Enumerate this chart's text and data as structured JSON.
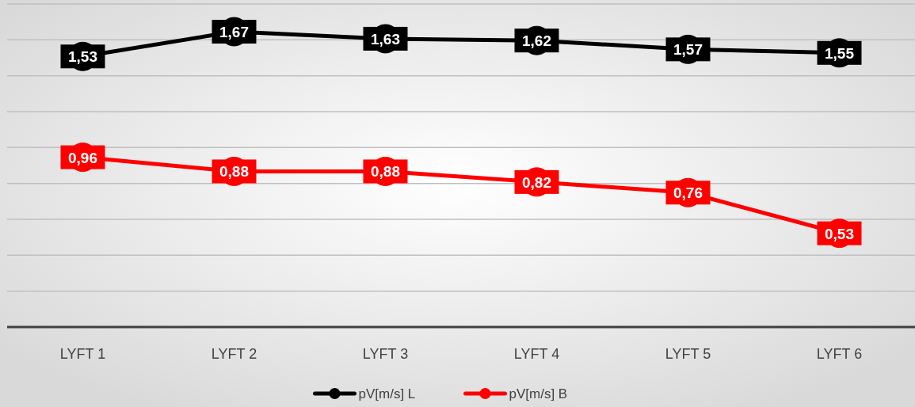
{
  "chart_data": {
    "type": "line",
    "categories": [
      "LYFT 1",
      "LYFT 2",
      "LYFT 3",
      "LYFT 4",
      "LYFT 5",
      "LYFT 6"
    ],
    "series": [
      {
        "name": "pV[m/s] L",
        "color": "#000000",
        "values": [
          1.53,
          1.67,
          1.63,
          1.62,
          1.57,
          1.55
        ],
        "value_labels": [
          "1,53",
          "1,67",
          "1,63",
          "1,62",
          "1,57",
          "1,55"
        ]
      },
      {
        "name": "pV[m/s] B",
        "color": "#ff0000",
        "values": [
          0.96,
          0.88,
          0.88,
          0.82,
          0.76,
          0.53
        ],
        "value_labels": [
          "0,96",
          "0,88",
          "0,88",
          "0,82",
          "0,76",
          "0,53"
        ]
      }
    ],
    "tick_labels": "x",
    "grid": "y",
    "legend": "bottom",
    "marker": "circle"
  }
}
